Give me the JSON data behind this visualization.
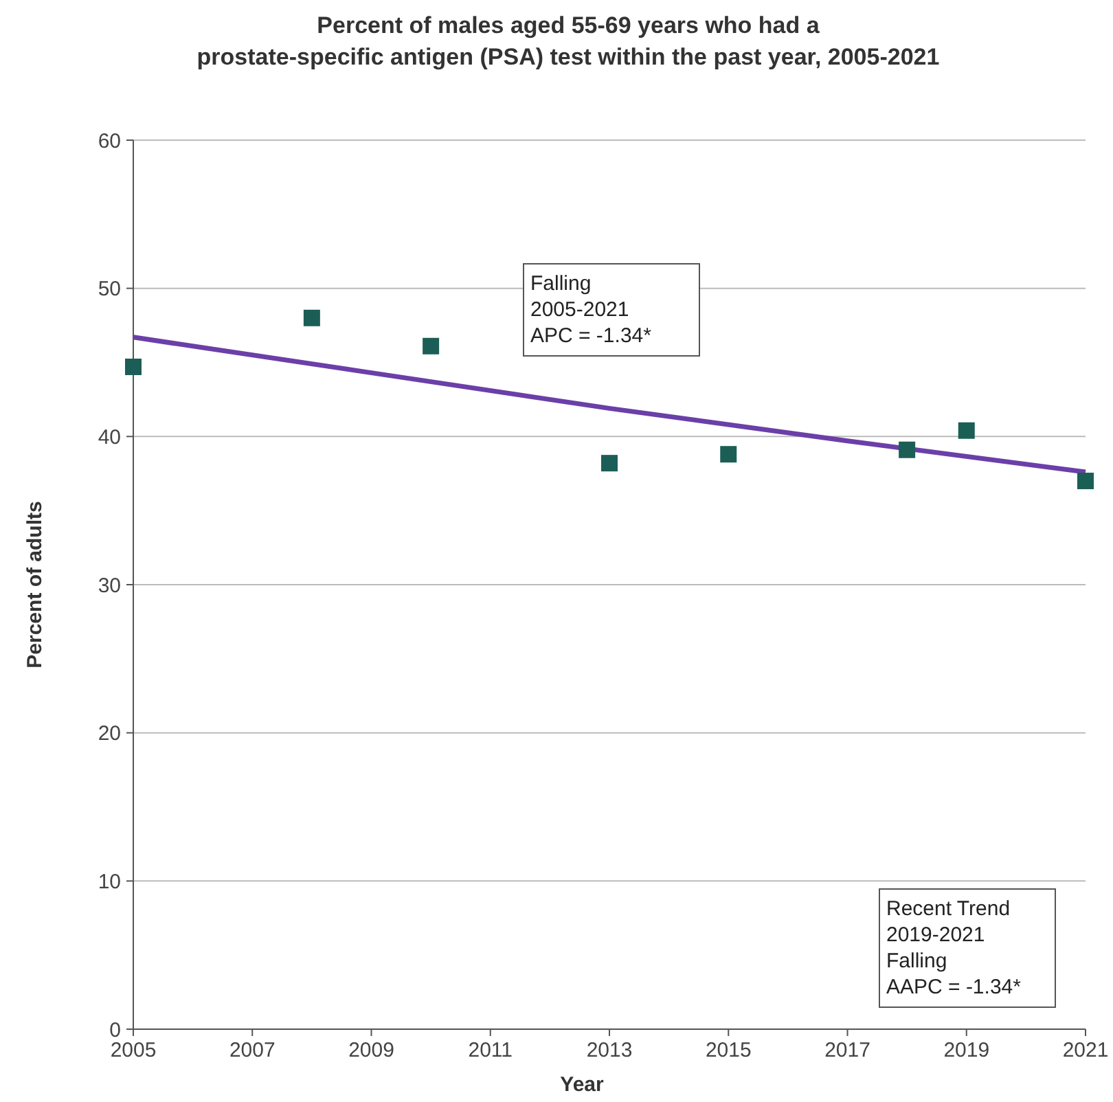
{
  "chart_data": {
    "type": "scatter",
    "title": "Percent of males aged 55-69 years who had a\nprostate-specific antigen (PSA) test within the past year, 2005-2021",
    "xlabel": "Year",
    "ylabel": "Percent of adults",
    "series": [
      {
        "color": "#1b5e55",
        "marker": "square",
        "x": [
          2005,
          2008,
          2010,
          2013,
          2015,
          2018,
          2019,
          2021
        ],
        "values": [
          44.7,
          48.0,
          46.1,
          38.2,
          38.8,
          39.1,
          40.4,
          37.0
        ]
      },
      {
        "type": "line",
        "color": "#6b3fa8",
        "marker": "none",
        "line_style": "solid",
        "x": [
          2005,
          2009,
          2013,
          2017,
          2021
        ],
        "values": [
          46.7,
          44.3,
          41.9,
          39.7,
          37.6
        ]
      }
    ],
    "xlim": [
      2005,
      2021
    ],
    "xticks": [
      2005,
      2007,
      2009,
      2011,
      2013,
      2015,
      2017,
      2019,
      2021
    ],
    "ylim": [
      0,
      60
    ],
    "yticks": [
      0,
      10,
      20,
      30,
      40,
      50,
      60
    ],
    "grid": "y",
    "annotations": [
      "Falling\n2005-2021\nAPC = -1.34*",
      "Recent Trend\n2019-2021\nFalling\nAAPC = -1.34*"
    ]
  }
}
